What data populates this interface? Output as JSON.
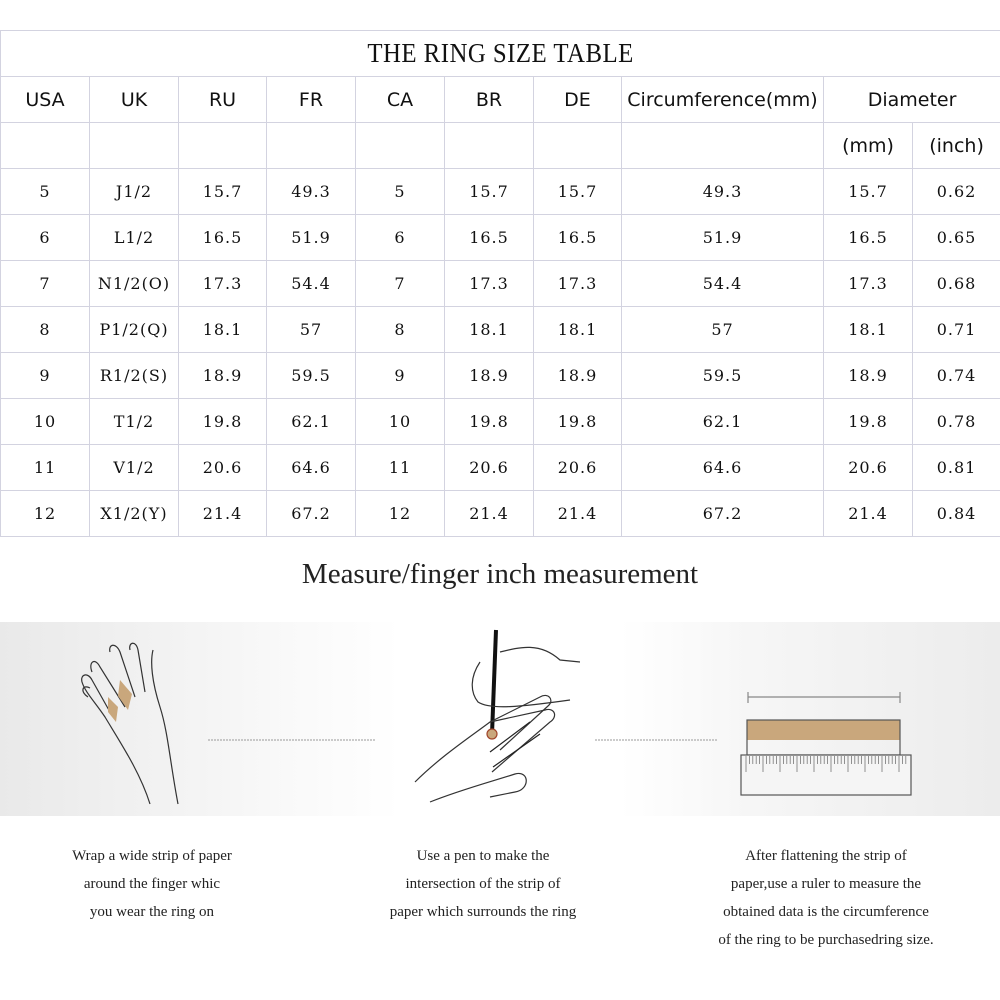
{
  "table": {
    "title": "THE RING SIZE TABLE",
    "headers": [
      "USA",
      "UK",
      "RU",
      "FR",
      "CA",
      "BR",
      "DE",
      "Circumference(mm)",
      "Diameter"
    ],
    "subheaders": [
      "(mm)",
      "(inch)"
    ],
    "rows": [
      [
        "5",
        "J1/2",
        "15.7",
        "49.3",
        "5",
        "15.7",
        "15.7",
        "49.3",
        "15.7",
        "0.62"
      ],
      [
        "6",
        "L1/2",
        "16.5",
        "51.9",
        "6",
        "16.5",
        "16.5",
        "51.9",
        "16.5",
        "0.65"
      ],
      [
        "7",
        "N1/2(O)",
        "17.3",
        "54.4",
        "7",
        "17.3",
        "17.3",
        "54.4",
        "17.3",
        "0.68"
      ],
      [
        "8",
        "P1/2(Q)",
        "18.1",
        "57",
        "8",
        "18.1",
        "18.1",
        "57",
        "18.1",
        "0.71"
      ],
      [
        "9",
        "R1/2(S)",
        "18.9",
        "59.5",
        "9",
        "18.9",
        "18.9",
        "59.5",
        "18.9",
        "0.74"
      ],
      [
        "10",
        "T1/2",
        "19.8",
        "62.1",
        "10",
        "19.8",
        "19.8",
        "62.1",
        "19.8",
        "0.78"
      ],
      [
        "11",
        "V1/2",
        "20.6",
        "64.6",
        "11",
        "20.6",
        "20.6",
        "64.6",
        "20.6",
        "0.81"
      ],
      [
        "12",
        "X1/2(Y)",
        "21.4",
        "67.2",
        "12",
        "21.4",
        "21.4",
        "67.2",
        "21.4",
        "0.84"
      ]
    ]
  },
  "measure": {
    "heading": "Measure/finger inch measurement",
    "steps": [
      {
        "icon": "hand-wrap-paper-icon",
        "lines": [
          "Wrap a wide strip of paper",
          "around the finger whic",
          "you wear the ring on"
        ]
      },
      {
        "icon": "pen-mark-finger-icon",
        "lines": [
          "Use a pen to make the",
          "intersection of the strip of",
          "paper which surrounds the ring"
        ]
      },
      {
        "icon": "ruler-measure-icon",
        "lines": [
          "After flattening the strip of",
          "paper,use a ruler to measure the",
          "obtained data is the circumference",
          "of the ring to be purchasedring size."
        ]
      }
    ],
    "paper_color": "#c9a77c"
  }
}
